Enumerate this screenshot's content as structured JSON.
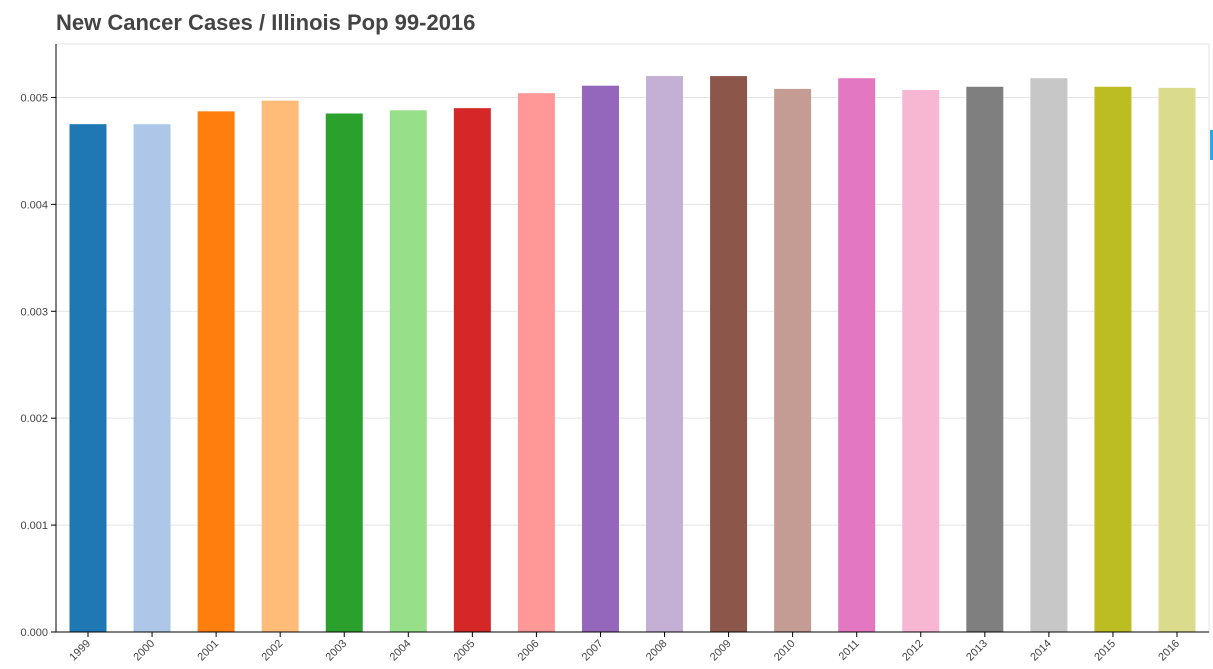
{
  "chart_data": {
    "type": "bar",
    "title": "New Cancer Cases / Illinois Pop 99-2016",
    "xlabel": "",
    "ylabel": "",
    "categories": [
      "1999",
      "2000",
      "2001",
      "2002",
      "2003",
      "2004",
      "2005",
      "2006",
      "2007",
      "2008",
      "2009",
      "2010",
      "2011",
      "2012",
      "2013",
      "2014",
      "2015",
      "2016"
    ],
    "values": [
      0.00475,
      0.00475,
      0.00487,
      0.00497,
      0.00485,
      0.00488,
      0.0049,
      0.00504,
      0.00511,
      0.0052,
      0.0052,
      0.00508,
      0.00518,
      0.00507,
      0.0051,
      0.00518,
      0.0051,
      0.00509
    ],
    "colors": [
      "#1f77b4",
      "#aec7e8",
      "#ff7f0e",
      "#ffbb78",
      "#2ca02c",
      "#98df8a",
      "#d62728",
      "#ff9896",
      "#9467bd",
      "#c5b0d5",
      "#8c564b",
      "#c49c94",
      "#e377c2",
      "#f7b6d2",
      "#7f7f7f",
      "#c7c7c7",
      "#bcbd22",
      "#dbdb8d"
    ],
    "ylim": [
      0,
      0.0055
    ],
    "yticks": [
      "0.000",
      "0.001",
      "0.002",
      "0.003",
      "0.004",
      "0.005"
    ],
    "ytick_values": [
      0,
      0.001,
      0.002,
      0.003,
      0.004,
      0.005
    ],
    "grid": true,
    "legend": "none"
  },
  "toolbar_color": "#26aae1"
}
